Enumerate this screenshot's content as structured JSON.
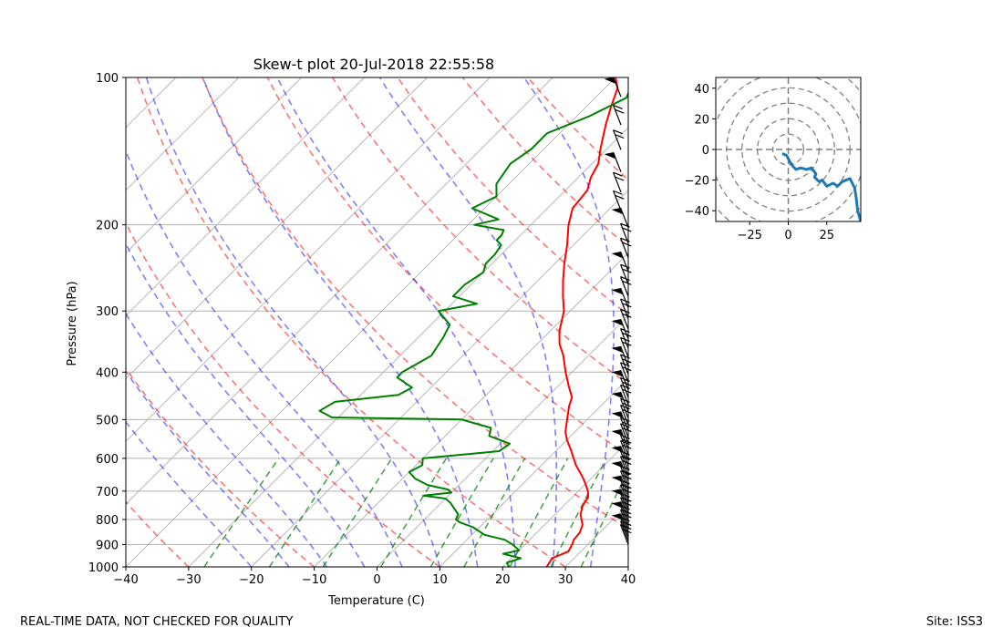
{
  "chart_data": [
    {
      "type": "skew-t",
      "title": "Skew-t plot 20-Jul-2018 22:55:58",
      "xlabel": "Temperature (C)",
      "ylabel": "Pressure (hPa)",
      "xlim": [
        -40,
        40
      ],
      "ylim": [
        1000,
        100
      ],
      "y_scale": "log",
      "grid": true,
      "x_ticks": [
        "−40",
        "−30",
        "−20",
        "−10",
        "0",
        "10",
        "20",
        "30",
        "40"
      ],
      "y_ticks": [
        "100",
        "200",
        "300",
        "400",
        "500",
        "600",
        "700",
        "800",
        "900",
        "1000"
      ],
      "series": [
        {
          "color": "#ff0000",
          "points": [
            [
              1000,
              27
            ],
            [
              960,
              26.5
            ],
            [
              930,
              28
            ],
            [
              900,
              27.5
            ],
            [
              880,
              27
            ],
            [
              850,
              26.8
            ],
            [
              820,
              26
            ],
            [
              800,
              25
            ],
            [
              780,
              24
            ],
            [
              750,
              23
            ],
            [
              720,
              22.5
            ],
            [
              700,
              21.5
            ],
            [
              670,
              19.5
            ],
            [
              650,
              18
            ],
            [
              620,
              15.5
            ],
            [
              600,
              14
            ],
            [
              580,
              12.5
            ],
            [
              550,
              10
            ],
            [
              530,
              8.5
            ],
            [
              500,
              6.8
            ],
            [
              470,
              5
            ],
            [
              450,
              4
            ],
            [
              430,
              2
            ],
            [
              400,
              -1
            ],
            [
              370,
              -4
            ],
            [
              350,
              -6.5
            ],
            [
              330,
              -8.5
            ],
            [
              300,
              -11
            ],
            [
              280,
              -13.5
            ],
            [
              260,
              -16
            ],
            [
              240,
              -18.5
            ],
            [
              220,
              -21
            ],
            [
              200,
              -24
            ],
            [
              185,
              -26
            ],
            [
              170,
              -26.5
            ],
            [
              160,
              -28
            ],
            [
              150,
              -29
            ],
            [
              140,
              -31
            ],
            [
              125,
              -34
            ],
            [
              115,
              -36
            ],
            [
              105,
              -38
            ],
            [
              100,
              -40
            ]
          ]
        },
        {
          "color": "#008000",
          "points": [
            [
              1000,
              21
            ],
            [
              980,
              20
            ],
            [
              960,
              21.5
            ],
            [
              940,
              18
            ],
            [
              925,
              20
            ],
            [
              900,
              18
            ],
            [
              880,
              16
            ],
            [
              860,
              12
            ],
            [
              850,
              11
            ],
            [
              830,
              9
            ],
            [
              810,
              6
            ],
            [
              800,
              5
            ],
            [
              780,
              4.5
            ],
            [
              760,
              3
            ],
            [
              740,
              1.5
            ],
            [
              725,
              0
            ],
            [
              715,
              -4
            ],
            [
              705,
              0
            ],
            [
              695,
              -1
            ],
            [
              680,
              -5
            ],
            [
              660,
              -8
            ],
            [
              640,
              -10
            ],
            [
              620,
              -9
            ],
            [
              600,
              -10
            ],
            [
              580,
              1
            ],
            [
              560,
              1.5
            ],
            [
              540,
              -3
            ],
            [
              520,
              -4
            ],
            [
              500,
              -10
            ],
            [
              495,
              -31
            ],
            [
              480,
              -34
            ],
            [
              460,
              -33
            ],
            [
              445,
              -24
            ],
            [
              430,
              -23
            ],
            [
              410,
              -27
            ],
            [
              400,
              -27
            ],
            [
              385,
              -26
            ],
            [
              370,
              -25
            ],
            [
              355,
              -25.5
            ],
            [
              340,
              -26
            ],
            [
              320,
              -27
            ],
            [
              300,
              -31
            ],
            [
              290,
              -26
            ],
            [
              280,
              -31
            ],
            [
              265,
              -31
            ],
            [
              250,
              -30
            ],
            [
              240,
              -31
            ],
            [
              230,
              -31
            ],
            [
              220,
              -31.5
            ],
            [
              215,
              -33
            ],
            [
              210,
              -33
            ],
            [
              205,
              -33.5
            ],
            [
              200,
              -39
            ],
            [
              195,
              -36
            ],
            [
              185,
              -42
            ],
            [
              175,
              -40
            ],
            [
              165,
              -42
            ],
            [
              150,
              -43
            ],
            [
              140,
              -42
            ],
            [
              130,
              -42
            ],
            [
              120,
              -38
            ],
            [
              110,
              -35
            ],
            [
              105,
              -36
            ],
            [
              100,
              -37
            ]
          ]
        }
      ]
    },
    {
      "type": "line",
      "xlim": [
        -47,
        47
      ],
      "ylim": [
        -47,
        47
      ],
      "x_ticks": [
        "−25",
        "0",
        "25"
      ],
      "y_ticks": [
        "40",
        "20",
        "0",
        "−20",
        "−40"
      ],
      "color": "#1f77b4",
      "x": [
        -4,
        -3,
        -1,
        1,
        3,
        5,
        8,
        12,
        15,
        18,
        17,
        20,
        22,
        25,
        27,
        29,
        32,
        35,
        40,
        43,
        44,
        45,
        47
      ],
      "y": [
        -3,
        -3,
        -4,
        -8,
        -11,
        -13,
        -12,
        -13,
        -12,
        -16,
        -18,
        -21,
        -20,
        -24,
        -23,
        -22,
        -24,
        -21,
        -19,
        -25,
        -31,
        -40,
        -47
      ]
    }
  ],
  "footer": {
    "left": "REAL-TIME DATA, NOT CHECKED FOR QUALITY",
    "right": "Site: ISS3"
  }
}
